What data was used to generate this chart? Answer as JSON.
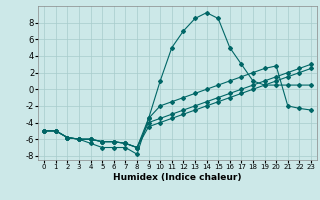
{
  "xlabel": "Humidex (Indice chaleur)",
  "background_color": "#cce8e8",
  "grid_color": "#a8cccc",
  "line_color": "#006666",
  "xlim": [
    -0.5,
    23.5
  ],
  "ylim": [
    -8.5,
    10
  ],
  "xticks": [
    0,
    1,
    2,
    3,
    4,
    5,
    6,
    7,
    8,
    9,
    10,
    11,
    12,
    13,
    14,
    15,
    16,
    17,
    18,
    19,
    20,
    21,
    22,
    23
  ],
  "yticks": [
    -8,
    -6,
    -4,
    -2,
    0,
    2,
    4,
    6,
    8
  ],
  "line1_x": [
    0,
    1,
    2,
    3,
    4,
    5,
    6,
    7,
    8,
    9,
    10,
    11,
    12,
    13,
    14,
    15,
    16,
    17,
    18,
    19,
    20,
    21,
    22,
    23
  ],
  "line1_y": [
    -5.0,
    -5.0,
    -5.8,
    -6.0,
    -6.5,
    -7.0,
    -7.0,
    -7.0,
    -7.8,
    -3.5,
    1.0,
    5.0,
    7.0,
    8.5,
    9.2,
    8.5,
    5.0,
    3.0,
    1.0,
    0.5,
    0.5,
    0.5,
    0.5,
    0.5
  ],
  "line2_x": [
    0,
    1,
    2,
    3,
    4,
    5,
    6,
    7,
    8,
    9,
    10,
    11,
    12,
    13,
    14,
    15,
    16,
    17,
    18,
    19,
    20,
    21,
    22,
    23
  ],
  "line2_y": [
    -5.0,
    -5.0,
    -5.8,
    -6.0,
    -6.0,
    -6.3,
    -6.3,
    -6.5,
    -7.0,
    -3.5,
    -2.0,
    -1.5,
    -1.0,
    -0.5,
    0.0,
    0.5,
    1.0,
    1.5,
    2.0,
    2.5,
    2.8,
    -2.0,
    -2.3,
    -2.5
  ],
  "line3_x": [
    0,
    1,
    2,
    3,
    4,
    5,
    6,
    7,
    8,
    9,
    10,
    11,
    12,
    13,
    14,
    15,
    16,
    17,
    18,
    19,
    20,
    21,
    22,
    23
  ],
  "line3_y": [
    -5.0,
    -5.0,
    -5.8,
    -6.0,
    -6.0,
    -6.3,
    -6.3,
    -6.5,
    -7.0,
    -4.0,
    -3.5,
    -3.0,
    -2.5,
    -2.0,
    -1.5,
    -1.0,
    -0.5,
    0.0,
    0.5,
    1.0,
    1.5,
    2.0,
    2.5,
    3.0
  ],
  "line4_x": [
    0,
    1,
    2,
    3,
    4,
    5,
    6,
    7,
    8,
    9,
    10,
    11,
    12,
    13,
    14,
    15,
    16,
    17,
    18,
    19,
    20,
    21,
    22,
    23
  ],
  "line4_y": [
    -5.0,
    -5.0,
    -5.8,
    -6.0,
    -6.0,
    -6.3,
    -6.3,
    -6.5,
    -7.0,
    -4.5,
    -4.0,
    -3.5,
    -3.0,
    -2.5,
    -2.0,
    -1.5,
    -1.0,
    -0.5,
    0.0,
    0.5,
    1.0,
    1.5,
    2.0,
    2.5
  ]
}
